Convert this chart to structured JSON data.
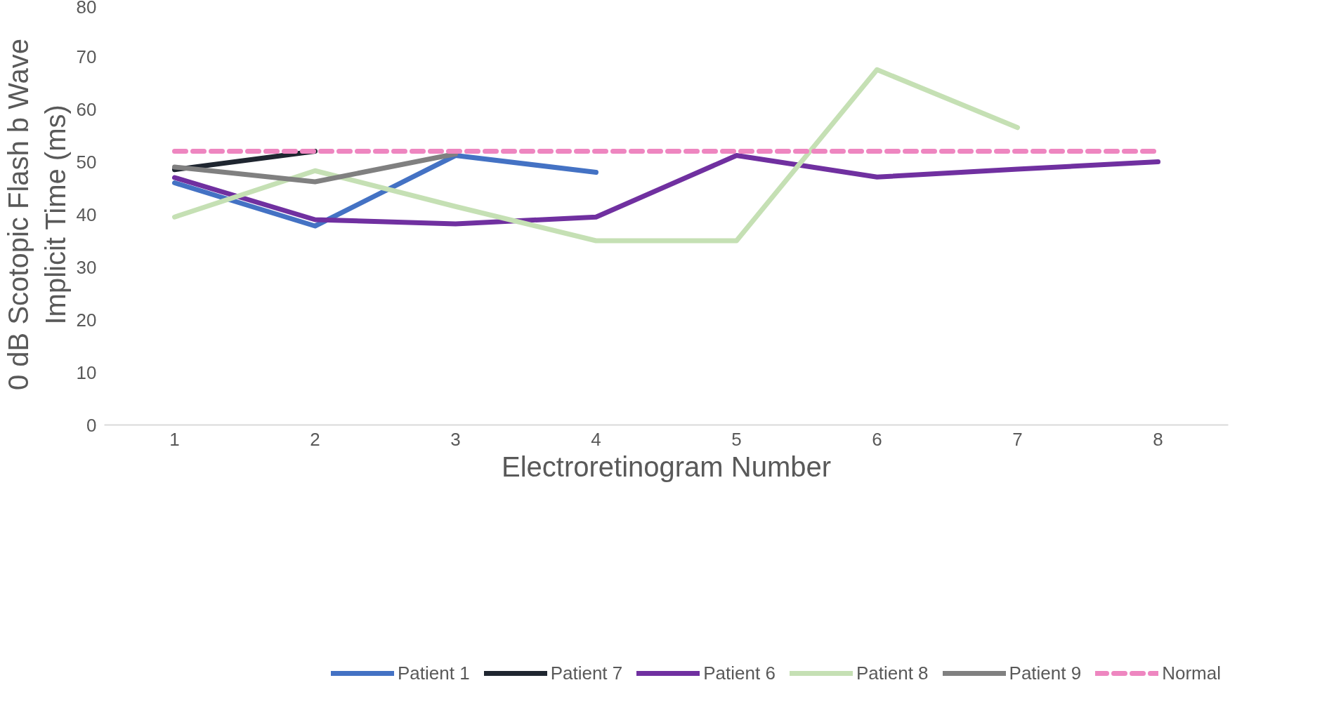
{
  "chart_data": {
    "type": "line",
    "xlabel": "Electroretinogram Number",
    "ylabel": "0 dB Scotopic Flash b Wave Implicit Time (ms)",
    "categories": [
      "1",
      "2",
      "3",
      "4",
      "5",
      "6",
      "7",
      "8"
    ],
    "ylim": [
      0,
      80
    ],
    "yticks": [
      0,
      10,
      20,
      30,
      40,
      50,
      60,
      70,
      80
    ],
    "grid": false,
    "legend": "bottom",
    "series": [
      {
        "name": "Patient 1",
        "color": "#4472c4",
        "values": [
          46,
          37.8,
          51.2,
          48,
          null,
          null,
          null,
          null
        ]
      },
      {
        "name": "Patient 7",
        "color": "#1f2630",
        "values": [
          48.5,
          52,
          null,
          null,
          null,
          null,
          null,
          null
        ]
      },
      {
        "name": "Patient 6",
        "color": "#7030a0",
        "values": [
          47,
          39,
          38.2,
          39.5,
          51.2,
          47.1,
          48.6,
          50
        ]
      },
      {
        "name": "Patient 8",
        "color": "#c5e0b4",
        "values": [
          39.5,
          48.3,
          41.5,
          35,
          35,
          67.5,
          56.5,
          null
        ]
      },
      {
        "name": "Patient 9",
        "color": "#808080",
        "values": [
          49,
          46.2,
          51.5,
          null,
          null,
          null,
          null,
          null
        ]
      },
      {
        "name": "Normal",
        "color": "#ee86c0",
        "line_style": "dashed",
        "values": [
          52,
          52,
          52,
          52,
          52,
          52,
          52,
          52
        ]
      }
    ]
  }
}
